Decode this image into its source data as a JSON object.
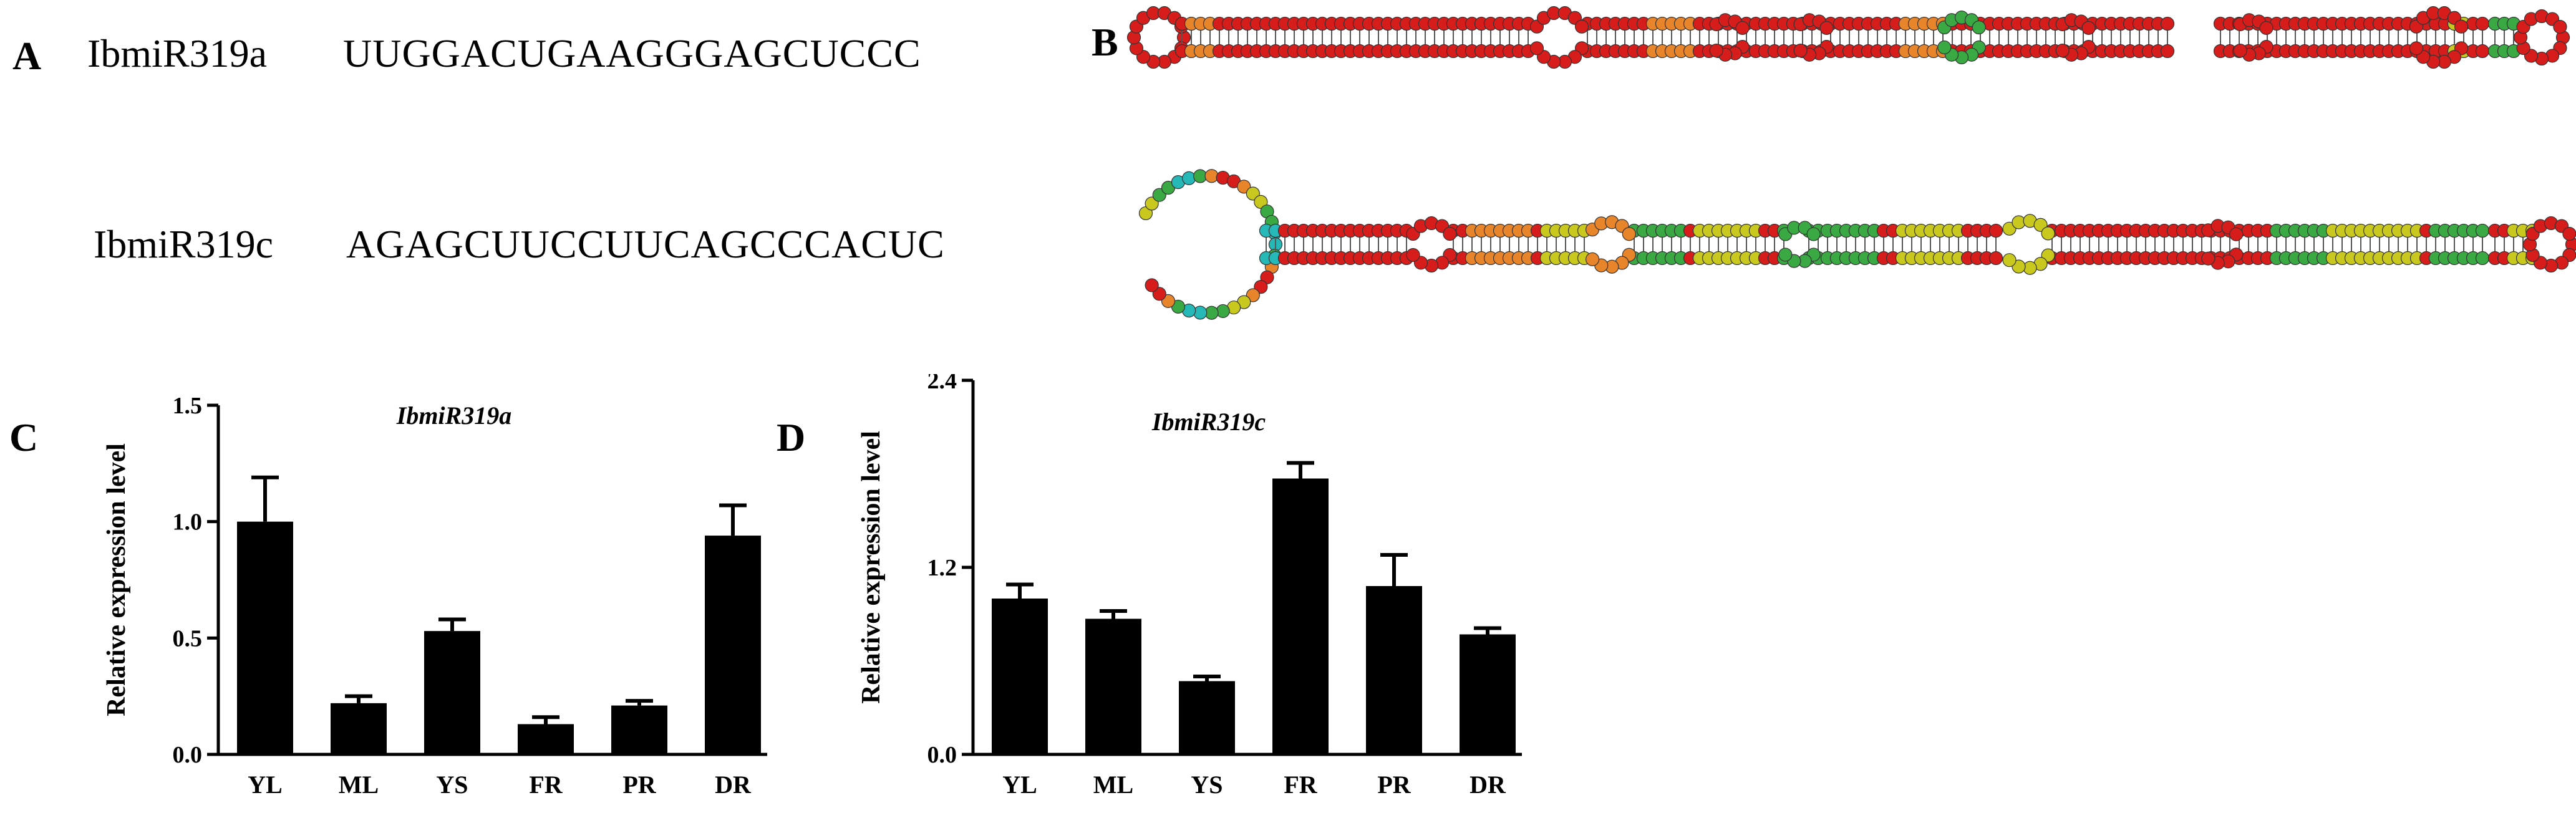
{
  "panels": {
    "a": {
      "letter": "A"
    },
    "b": {
      "letter": "B"
    },
    "c": {
      "letter": "C"
    },
    "d": {
      "letter": "D"
    }
  },
  "sequences": [
    {
      "name": "IbmiR319a",
      "sequence": "UUGGACUGAAGGGAGCUCCC"
    },
    {
      "name": "IbmiR319c",
      "sequence": "AGAGCUUCCUUCAGCCCACUC"
    }
  ],
  "structure_colors": {
    "red": "#d71c1c",
    "orange": "#e8842a",
    "yellow": "#c9c81e",
    "green": "#3aa843",
    "cyan": "#26b7b7"
  },
  "chart_data": [
    {
      "type": "bar",
      "title": "IbmiR319a",
      "ylabel": "Relative expression level",
      "xlabel": "",
      "categories": [
        "YL",
        "ML",
        "YS",
        "FR",
        "PR",
        "DR"
      ],
      "values": [
        1.0,
        0.22,
        0.53,
        0.13,
        0.21,
        0.94
      ],
      "errors": [
        0.19,
        0.03,
        0.05,
        0.03,
        0.02,
        0.13
      ],
      "ylim": [
        0,
        1.5
      ],
      "yticks": [
        "0.0",
        "0.5",
        "1.0",
        "1.5"
      ],
      "bar_color": "#000000"
    },
    {
      "type": "bar",
      "title": "IbmiR319c",
      "ylabel": "Relative expression level",
      "xlabel": "",
      "categories": [
        "YL",
        "ML",
        "YS",
        "FR",
        "PR",
        "DR"
      ],
      "values": [
        1.0,
        0.87,
        0.47,
        1.77,
        1.08,
        0.77
      ],
      "errors": [
        0.09,
        0.05,
        0.03,
        0.1,
        0.2,
        0.04
      ],
      "ylim": [
        0,
        2.4
      ],
      "yticks": [
        "0.0",
        "1.2",
        "2.4"
      ],
      "bar_color": "#000000"
    }
  ]
}
